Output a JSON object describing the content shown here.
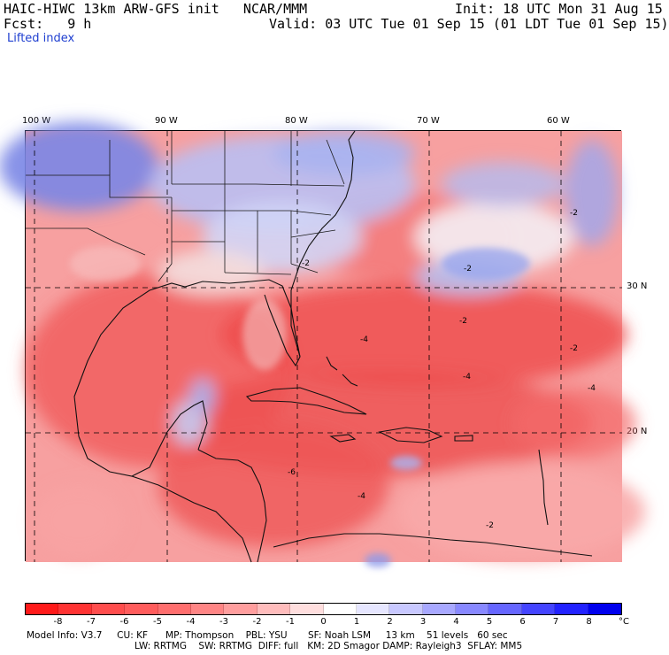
{
  "header": {
    "model_line": "HAIC-HIWC 13km ARW-GFS init   NCAR/MMM",
    "init_line": "Init: 18 UTC Mon 31 Aug 15",
    "fcst_line": "Fcst:   9 h",
    "valid_line": "Valid: 03 UTC Tue 01 Sep 15 (01 LDT Tue 01 Sep 15)",
    "field_name": "Lifted index"
  },
  "map": {
    "lon_labels": [
      "100 W",
      "90 W",
      "80 W",
      "70 W",
      "60 W"
    ],
    "lat_labels": [
      "30 N",
      "20 N"
    ],
    "contour_labels": [
      "-2",
      "-2",
      "-2",
      "-4",
      "-4",
      "-4",
      "-6",
      "-4",
      "-2",
      "-2",
      "-2"
    ]
  },
  "colorbar": {
    "labels": [
      "-8",
      "-7",
      "-6",
      "-5",
      "-4",
      "-3",
      "-2",
      "-1",
      "0",
      "1",
      "2",
      "3",
      "4",
      "5",
      "6",
      "7",
      "8"
    ],
    "unit": "°C",
    "colors": [
      "#ff1a1a",
      "#ff3333",
      "#ff4d4d",
      "#ff5c5c",
      "#ff6e6e",
      "#ff8585",
      "#ff9e9e",
      "#ffbcbc",
      "#ffdede",
      "#ffffff",
      "#e6e6ff",
      "#c8c8ff",
      "#a8a8ff",
      "#8888ff",
      "#6666ff",
      "#4444ff",
      "#2222ff",
      "#0000ee"
    ]
  },
  "footer": {
    "line1": "Model Info: V3.7     CU: KF      MP: Thompson    PBL: YSU       SF: Noah LSM     13 km    51 levels   60 sec",
    "line2": "LW: RRTMG    SW: RRTMG  DIFF: full   KM: 2D Smagor DAMP: Rayleigh3  SFLAY: MM5"
  }
}
